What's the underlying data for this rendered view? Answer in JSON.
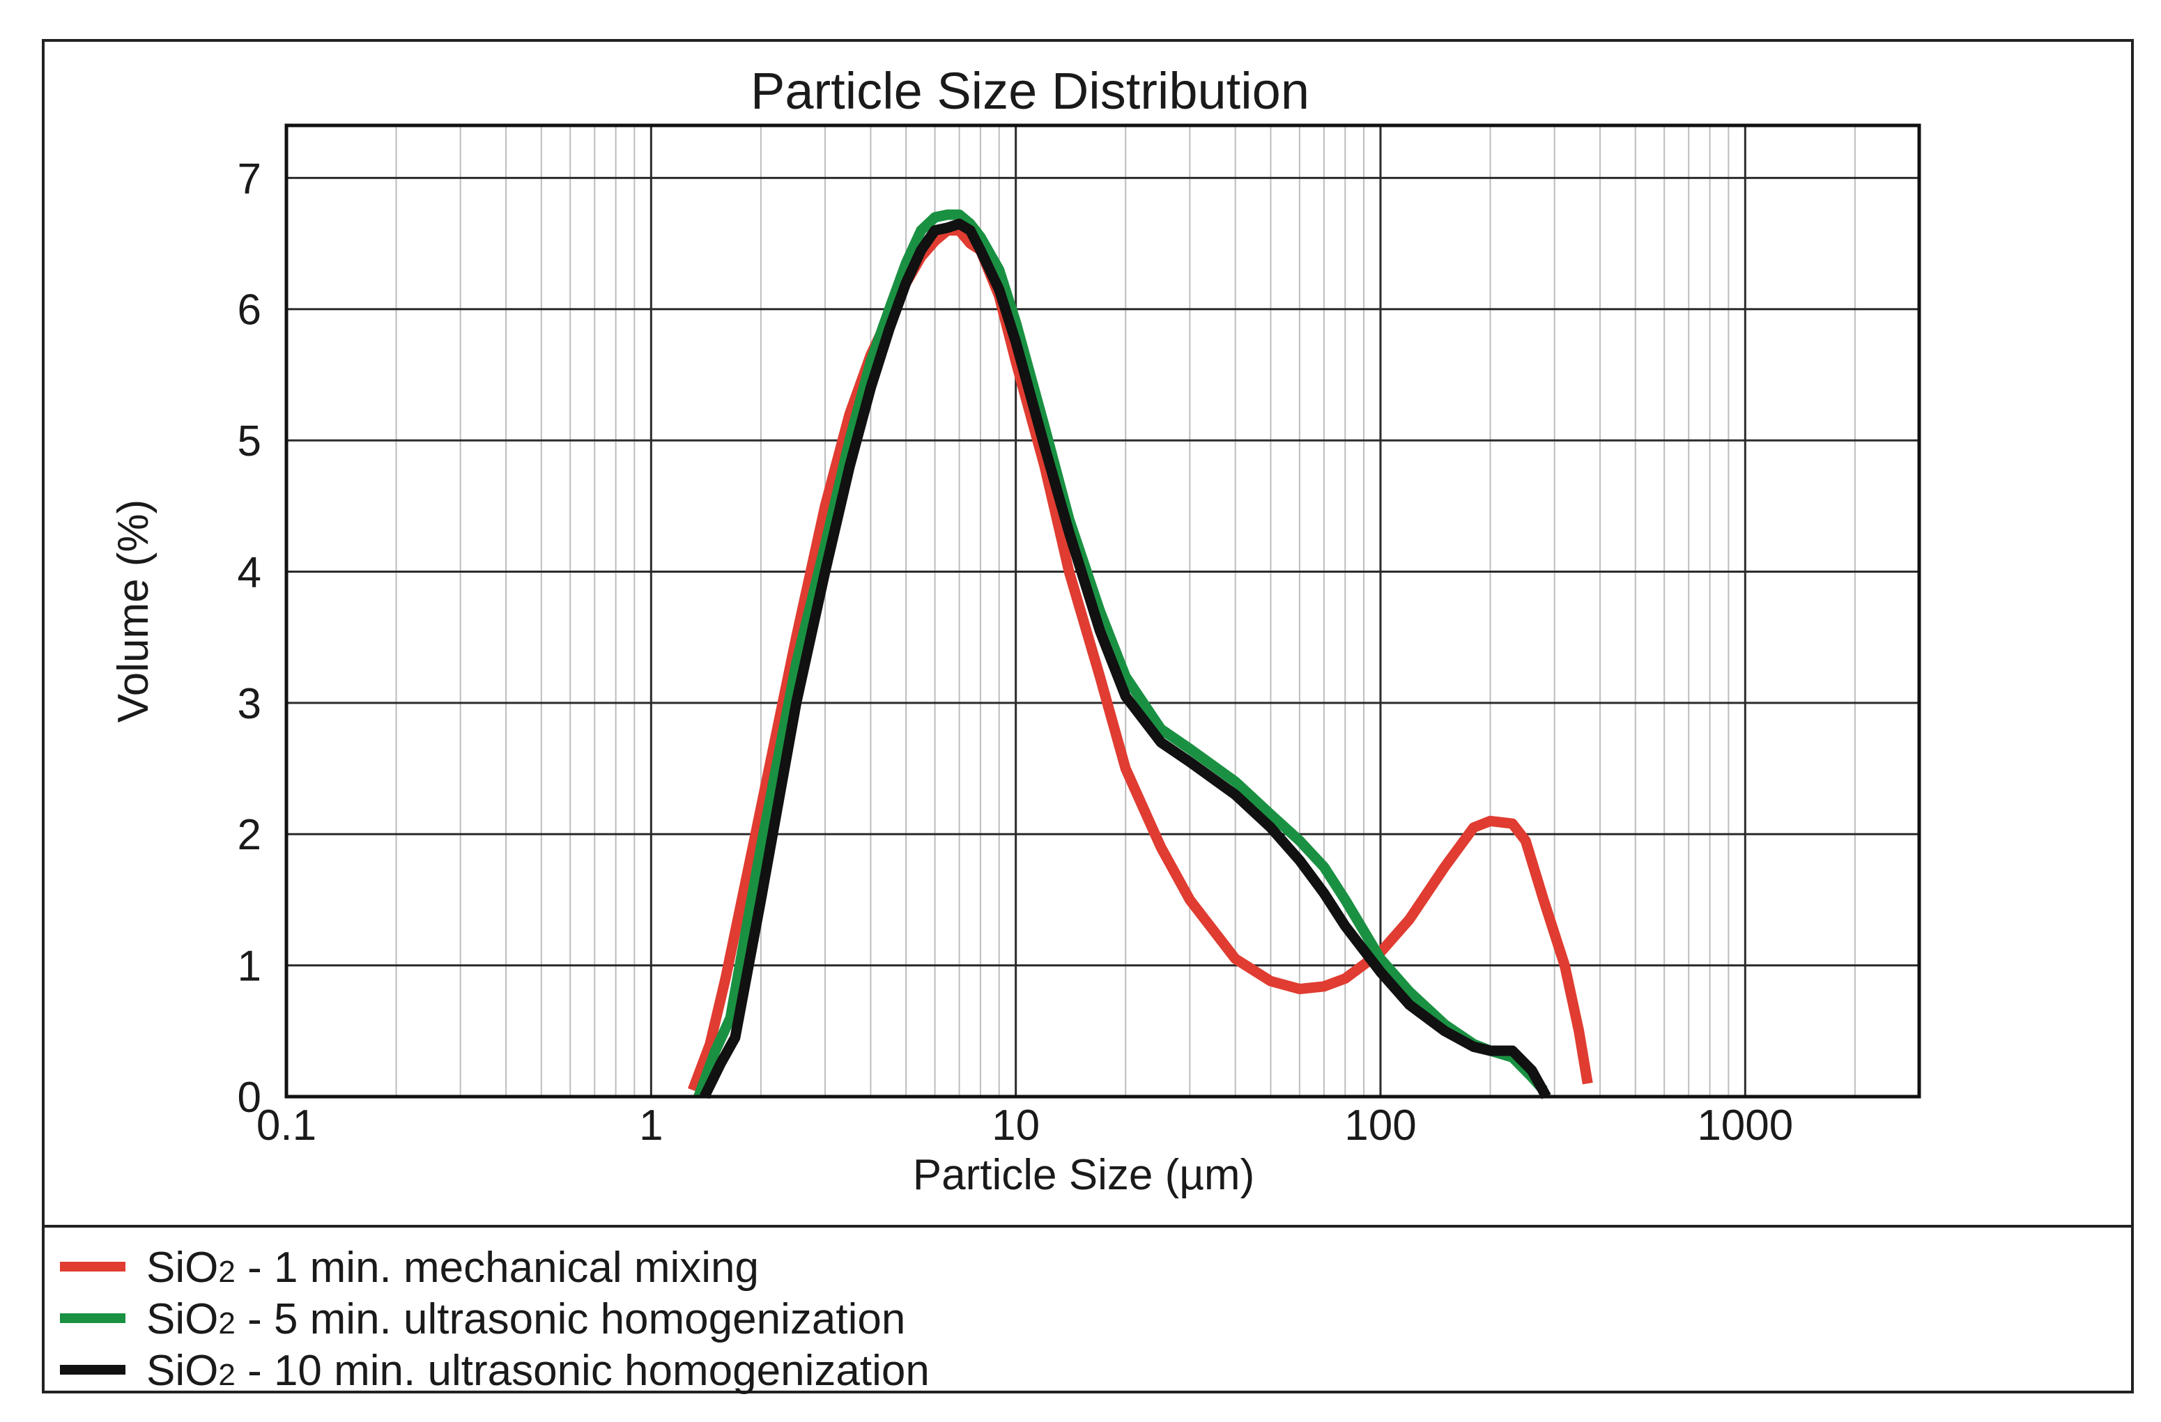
{
  "chart_data": {
    "type": "line",
    "title": "Particle Size Distribution",
    "xlabel": "Particle Size (µm)",
    "ylabel": "Volume (%)",
    "xscale": "log",
    "xlim": [
      0.1,
      3000
    ],
    "ylim": [
      0,
      7.4
    ],
    "grid": true,
    "legend_position": "bottom",
    "x_ticks": [
      "0.1",
      "1",
      "10",
      "100",
      "1000"
    ],
    "y_ticks": [
      "0",
      "1",
      "2",
      "3",
      "4",
      "5",
      "6",
      "7"
    ],
    "series": [
      {
        "name": "SiO2 - 1 min. mechanical mixing",
        "label_main": "SiO",
        "label_sub": "2",
        "label_rest": " - 1 min. mechanical mixing",
        "color": "#e03c31",
        "x": [
          1.3,
          1.45,
          1.6,
          2.0,
          2.5,
          3.0,
          3.5,
          4.0,
          4.5,
          5.0,
          5.5,
          6.0,
          6.5,
          7.0,
          7.5,
          8.0,
          9.0,
          10.0,
          12.0,
          14.0,
          17.0,
          20.0,
          25.0,
          30.0,
          40.0,
          50.0,
          60.0,
          70.0,
          80.0,
          100.0,
          120.0,
          150.0,
          180.0,
          200.0,
          230.0,
          250.0,
          280.0,
          320.0,
          350.0,
          370.0
        ],
        "y": [
          0.05,
          0.4,
          0.9,
          2.2,
          3.5,
          4.5,
          5.2,
          5.65,
          5.95,
          6.2,
          6.4,
          6.52,
          6.6,
          6.6,
          6.5,
          6.45,
          6.1,
          5.6,
          4.8,
          4.0,
          3.2,
          2.5,
          1.9,
          1.5,
          1.05,
          0.88,
          0.82,
          0.84,
          0.9,
          1.1,
          1.35,
          1.75,
          2.05,
          2.1,
          2.08,
          1.95,
          1.5,
          1.0,
          0.5,
          0.1
        ]
      },
      {
        "name": "SiO2 - 5 min. ultrasonic homogenization",
        "label_main": "SiO",
        "label_sub": "2",
        "label_rest": " - 5 min. ultrasonic homogenization",
        "color": "#1a9142",
        "x": [
          1.35,
          1.5,
          1.65,
          2.0,
          2.5,
          3.0,
          3.5,
          4.0,
          4.5,
          5.0,
          5.5,
          6.0,
          6.5,
          7.0,
          7.5,
          8.0,
          9.0,
          10.0,
          12.0,
          14.0,
          17.0,
          20.0,
          25.0,
          30.0,
          40.0,
          50.0,
          60.0,
          70.0,
          80.0,
          100.0,
          120.0,
          150.0,
          180.0,
          200.0,
          230.0,
          260.0,
          280.0
        ],
        "y": [
          0.0,
          0.35,
          0.6,
          1.9,
          3.3,
          4.2,
          5.0,
          5.6,
          6.0,
          6.35,
          6.6,
          6.7,
          6.72,
          6.72,
          6.65,
          6.55,
          6.3,
          5.9,
          5.1,
          4.4,
          3.7,
          3.2,
          2.8,
          2.65,
          2.4,
          2.15,
          1.95,
          1.75,
          1.5,
          1.05,
          0.8,
          0.55,
          0.4,
          0.35,
          0.3,
          0.15,
          0.05
        ]
      },
      {
        "name": "SiO2 - 10 min. ultrasonic homogenization",
        "label_main": "SiO",
        "label_sub": "2",
        "label_rest": " - 10 min. ultrasonic homogenization",
        "color": "#111111",
        "x": [
          1.4,
          1.55,
          1.7,
          2.0,
          2.5,
          3.0,
          3.5,
          4.0,
          4.5,
          5.0,
          5.5,
          6.0,
          6.5,
          7.0,
          7.5,
          8.0,
          9.0,
          10.0,
          12.0,
          14.0,
          17.0,
          20.0,
          25.0,
          30.0,
          40.0,
          50.0,
          60.0,
          70.0,
          80.0,
          100.0,
          120.0,
          150.0,
          180.0,
          200.0,
          230.0,
          260.0,
          285.0
        ],
        "y": [
          0.0,
          0.25,
          0.45,
          1.5,
          3.0,
          4.0,
          4.8,
          5.4,
          5.85,
          6.2,
          6.45,
          6.6,
          6.62,
          6.65,
          6.6,
          6.45,
          6.15,
          5.75,
          4.95,
          4.3,
          3.55,
          3.05,
          2.7,
          2.55,
          2.3,
          2.05,
          1.8,
          1.55,
          1.3,
          0.95,
          0.7,
          0.5,
          0.38,
          0.35,
          0.35,
          0.2,
          0.0
        ]
      }
    ]
  }
}
